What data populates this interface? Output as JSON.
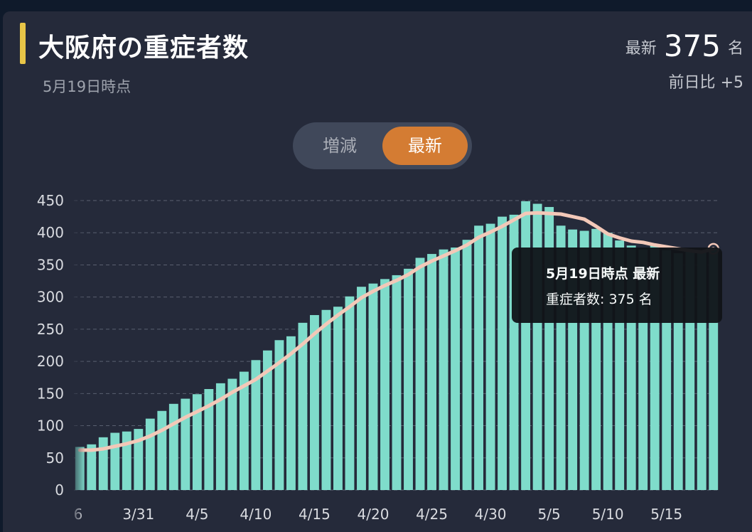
{
  "header": {
    "title": "大阪府の重症者数",
    "subtitle": "5月19日時点",
    "latest_label": "最新",
    "latest_value": "375",
    "latest_unit": "名",
    "diff_label": "前日比",
    "diff_value": "+5"
  },
  "toggle": {
    "option_change": "増減",
    "option_latest": "最新",
    "selected": "最新"
  },
  "tooltip": {
    "title": "5月19日時点 最新",
    "label": "重症者数:",
    "value": "375 名"
  },
  "colors": {
    "bar": "#7fdccb",
    "line": "#f3c8b8",
    "accent": "#d47c33",
    "title_bar": "#e8c547"
  },
  "chart_data": {
    "type": "bar",
    "y_ticks": [
      0,
      50,
      100,
      150,
      200,
      250,
      300,
      350,
      400,
      450
    ],
    "ylim": [
      0,
      450
    ],
    "grid": true,
    "x_tick_labels": [
      "6",
      "3/31",
      "4/5",
      "4/10",
      "4/15",
      "4/20",
      "4/25",
      "4/30",
      "5/5",
      "5/10",
      "5/15"
    ],
    "categories": [
      "3/26",
      "3/27",
      "3/28",
      "3/29",
      "3/30",
      "3/31",
      "4/1",
      "4/2",
      "4/3",
      "4/4",
      "4/5",
      "4/6",
      "4/7",
      "4/8",
      "4/9",
      "4/10",
      "4/11",
      "4/12",
      "4/13",
      "4/14",
      "4/15",
      "4/16",
      "4/17",
      "4/18",
      "4/19",
      "4/20",
      "4/21",
      "4/22",
      "4/23",
      "4/24",
      "4/25",
      "4/26",
      "4/27",
      "4/28",
      "4/29",
      "4/30",
      "5/1",
      "5/2",
      "5/3",
      "5/4",
      "5/5",
      "5/6",
      "5/7",
      "5/8",
      "5/9",
      "5/10",
      "5/11",
      "5/12",
      "5/13",
      "5/14",
      "5/15",
      "5/16",
      "5/17",
      "5/18",
      "5/19"
    ],
    "series": [
      {
        "type": "bar",
        "values": [
          67,
          71,
          82,
          89,
          91,
          95,
          111,
          123,
          134,
          142,
          149,
          157,
          166,
          173,
          184,
          202,
          217,
          233,
          239,
          260,
          272,
          280,
          285,
          301,
          316,
          321,
          328,
          334,
          344,
          361,
          367,
          374,
          377,
          389,
          411,
          414,
          425,
          428,
          449,
          445,
          440,
          411,
          405,
          403,
          406,
          400,
          388,
          380,
          374,
          380,
          373,
          368,
          370,
          370,
          375
        ]
      },
      {
        "type": "line",
        "values": [
          62,
          62,
          64,
          68,
          72,
          77,
          84,
          93,
          103,
          113,
          122,
          131,
          141,
          152,
          162,
          172,
          185,
          198,
          212,
          227,
          243,
          258,
          272,
          285,
          299,
          309,
          318,
          326,
          335,
          347,
          356,
          364,
          372,
          381,
          393,
          401,
          410,
          420,
          430,
          431,
          430,
          429,
          425,
          421,
          410,
          398,
          392,
          387,
          385,
          381,
          378,
          375,
          372,
          370,
          375
        ]
      }
    ]
  }
}
